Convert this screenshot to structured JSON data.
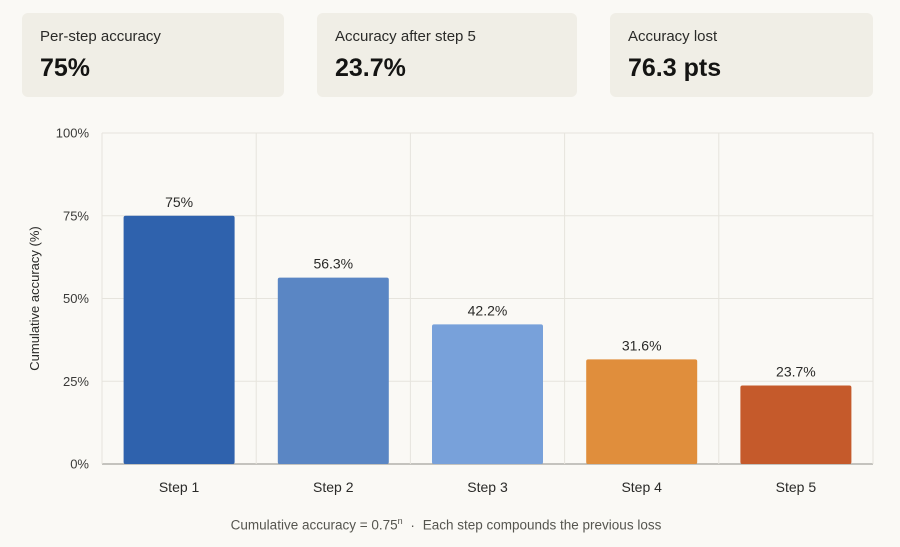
{
  "stats": [
    {
      "label": "Per-step accuracy",
      "value": "75%"
    },
    {
      "label": "Accuracy after step 5",
      "value": "23.7%"
    },
    {
      "label": "Accuracy lost",
      "value": "76.3 pts"
    }
  ],
  "chart_data": {
    "type": "bar",
    "categories": [
      "Step 1",
      "Step 2",
      "Step 3",
      "Step 4",
      "Step 5"
    ],
    "values": [
      75,
      56.3,
      42.2,
      31.6,
      23.7
    ],
    "data_labels": [
      "75%",
      "56.3%",
      "42.2%",
      "31.6%",
      "23.7%"
    ],
    "bar_colors": [
      "#2f62ad",
      "#5a86c4",
      "#78a1da",
      "#e08e3c",
      "#c55a2b"
    ],
    "ylabel": "Cumulative accuracy (%)",
    "ylim": [
      0,
      100
    ],
    "yticks": [
      0,
      25,
      50,
      75,
      100
    ],
    "ytick_labels": [
      "0%",
      "25%",
      "50%",
      "75%",
      "100%"
    ],
    "grid": true
  },
  "caption": {
    "formula_prefix": "Cumulative accuracy = 0.75",
    "formula_exponent": "n",
    "separator": "·",
    "note": "Each step compounds the previous loss"
  }
}
